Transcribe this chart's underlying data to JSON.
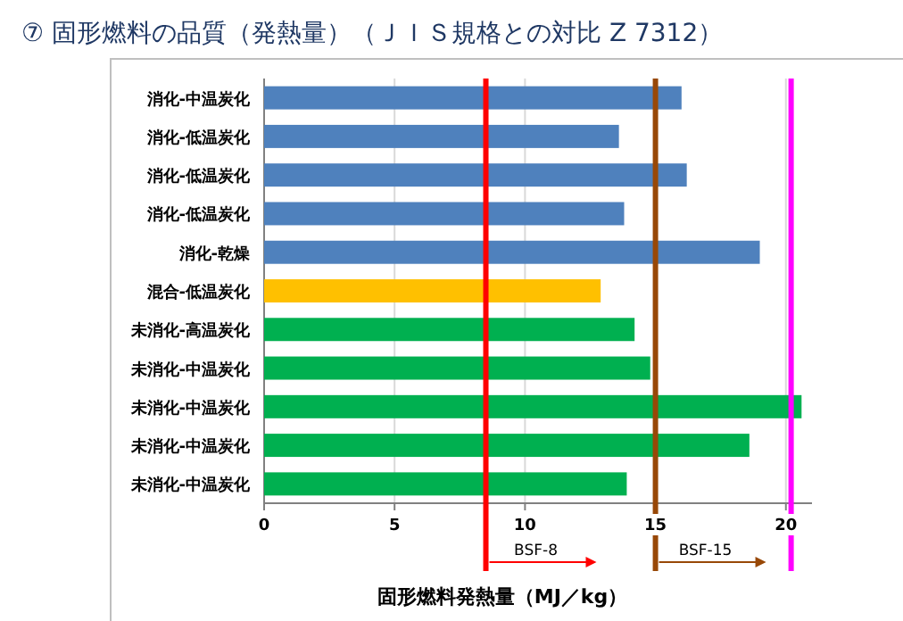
{
  "chart_data": {
    "type": "bar",
    "orientation": "horizontal",
    "title": "⑦ 固形燃料の品質（発熱量）（ＪＩＳ規格との対比 Z 7312）",
    "xlabel": "固形燃料発熱量（MJ／kg）",
    "categories": [
      "消化-中温炭化",
      "消化-低温炭化",
      "消化-低温炭化",
      "消化-低温炭化",
      "消化-乾燥",
      "混合-低温炭化",
      "未消化-高温炭化",
      "未消化-中温炭化",
      "未消化-中温炭化",
      "未消化-中温炭化",
      "未消化-中温炭化"
    ],
    "values": [
      16.0,
      13.6,
      16.2,
      13.8,
      19.0,
      12.9,
      14.2,
      14.8,
      20.6,
      18.6,
      13.9
    ],
    "colors": [
      "#4f81bd",
      "#4f81bd",
      "#4f81bd",
      "#4f81bd",
      "#4f81bd",
      "#ffc000",
      "#00b050",
      "#00b050",
      "#00b050",
      "#00b050",
      "#00b050"
    ],
    "xlim": [
      0,
      21
    ],
    "xticks": [
      0,
      5,
      10,
      15,
      20
    ],
    "grid": "x",
    "legend": false,
    "ref_lines": [
      {
        "axis": "x",
        "value": 8.5,
        "label": "BSF-8",
        "color": "#ff0000"
      },
      {
        "axis": "x",
        "value": 15,
        "label": "BSF-15",
        "color": "#984807"
      },
      {
        "axis": "x",
        "value": 20.2,
        "color": "#ff00ff"
      }
    ]
  }
}
